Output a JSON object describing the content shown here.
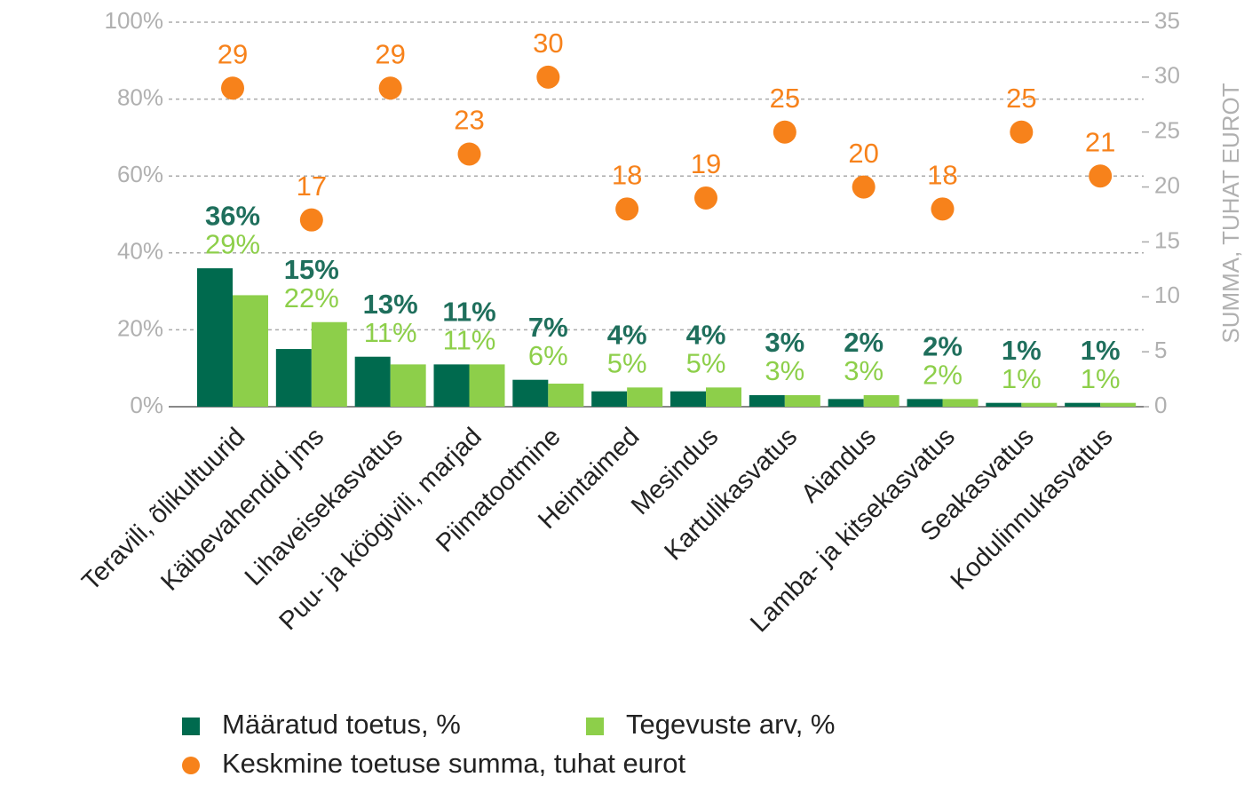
{
  "chart_data": {
    "type": "bar",
    "categories": [
      "Teravili, õlikultuurid",
      "Käibevahendid jms",
      "Lihaveisekasvatus",
      "Puu- ja köögivili, marjad",
      "Piimatootmine",
      "Heintaimed",
      "Mesindus",
      "Kartulikasvatus",
      "Aiandus",
      "Lamba- ja kitsekasvatus",
      "Seakasvatus",
      "Kodulinnukasvatus"
    ],
    "series": [
      {
        "name": "Määratud toetus, %",
        "color": "#006a4e",
        "label_color": "#1f6f5c",
        "values": [
          36,
          15,
          13,
          11,
          7,
          4,
          4,
          3,
          2,
          2,
          1,
          1
        ],
        "value_labels": [
          "36%",
          "15%",
          "13%",
          "11%",
          "7%",
          "4%",
          "4%",
          "3%",
          "2%",
          "2%",
          "1%",
          "1%"
        ]
      },
      {
        "name": "Tegevuste arv, %",
        "color": "#8dcf4a",
        "label_color": "#8dcf4a",
        "values": [
          29,
          22,
          11,
          11,
          6,
          5,
          5,
          3,
          3,
          2,
          1,
          1
        ],
        "value_labels": [
          "29%",
          "22%",
          "11%",
          "11%",
          "6%",
          "5%",
          "5%",
          "3%",
          "3%",
          "2%",
          "1%",
          "1%"
        ]
      },
      {
        "name": "Keskmine toetuse summa, tuhat eurot",
        "color": "#f7821b",
        "axis": "y2",
        "marker": "dot",
        "values": [
          29,
          17,
          29,
          23,
          30,
          18,
          19,
          25,
          20,
          18,
          25,
          21
        ]
      }
    ],
    "ylim": [
      0,
      100
    ],
    "yticks": [
      {
        "value": 0,
        "label": "0%"
      },
      {
        "value": 20,
        "label": "20%"
      },
      {
        "value": 40,
        "label": "40%"
      },
      {
        "value": 60,
        "label": "60%"
      },
      {
        "value": 80,
        "label": "80%"
      },
      {
        "value": 100,
        "label": "100%"
      }
    ],
    "y2lim": [
      0,
      35
    ],
    "y2ticks": [
      0,
      5,
      10,
      15,
      20,
      25,
      30,
      35
    ],
    "y2label": "SUMMA, TUHAT EUROT",
    "grid": true,
    "legend": "bottom"
  }
}
